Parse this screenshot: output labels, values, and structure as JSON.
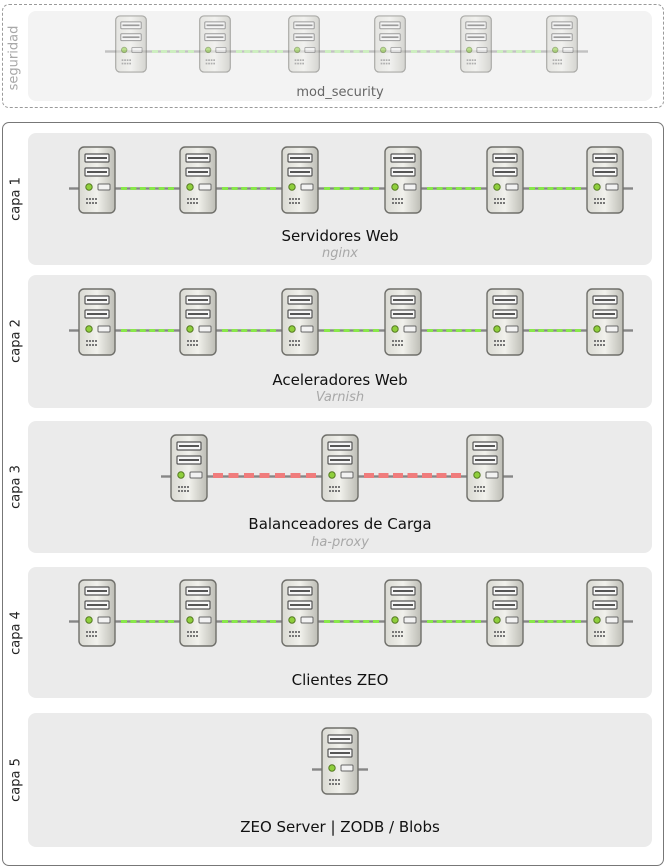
{
  "security": {
    "label": "seguridad",
    "title": "mod_security",
    "server_count": 6
  },
  "layers": [
    {
      "label": "capa 1",
      "title": "Servidores Web",
      "subtitle": "nginx",
      "server_count": 6,
      "link_style": "green-dashed"
    },
    {
      "label": "capa 2",
      "title": "Aceleradores Web",
      "subtitle": "Varnish",
      "server_count": 6,
      "link_style": "green-dashed"
    },
    {
      "label": "capa 3",
      "title": "Balanceadores de Carga",
      "subtitle": "ha-proxy",
      "server_count": 3,
      "link_style": "red-dashed"
    },
    {
      "label": "capa 4",
      "title": "Clientes ZEO",
      "subtitle": "",
      "server_count": 6,
      "link_style": "green-dashed"
    },
    {
      "label": "capa 5",
      "title": "ZEO Server | ZODB / Blobs",
      "subtitle": "",
      "server_count": 1,
      "link_style": "none"
    }
  ],
  "colors": {
    "link_green": "#88e84a",
    "link_red": "#f07c7c",
    "panel_bg": "#ebebeb"
  }
}
